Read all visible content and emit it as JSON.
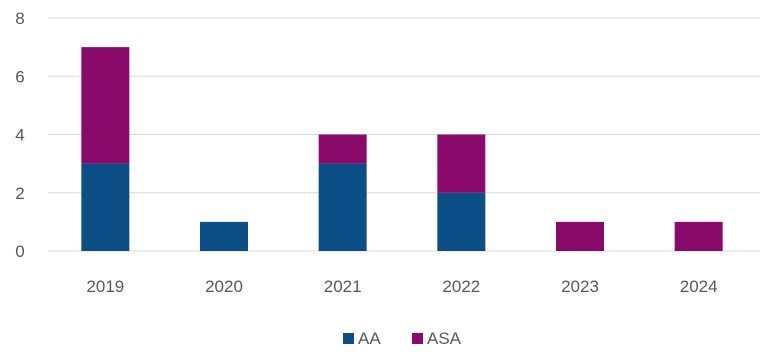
{
  "chart_data": {
    "type": "bar",
    "stacked": true,
    "title": "",
    "xlabel": "",
    "ylabel": "",
    "categories": [
      "2019",
      "2020",
      "2021",
      "2022",
      "2023",
      "2024"
    ],
    "series": [
      {
        "name": "AA",
        "color": "#0b4f86",
        "values": [
          3,
          1,
          3,
          2,
          0,
          0
        ]
      },
      {
        "name": "ASA",
        "color": "#8a0a6b",
        "values": [
          4,
          0,
          1,
          2,
          1,
          1
        ]
      }
    ],
    "ylim": [
      0,
      8
    ],
    "yticks": [
      "0",
      "2",
      "4",
      "6",
      "8"
    ],
    "grid": true,
    "legend_position": "bottom"
  }
}
